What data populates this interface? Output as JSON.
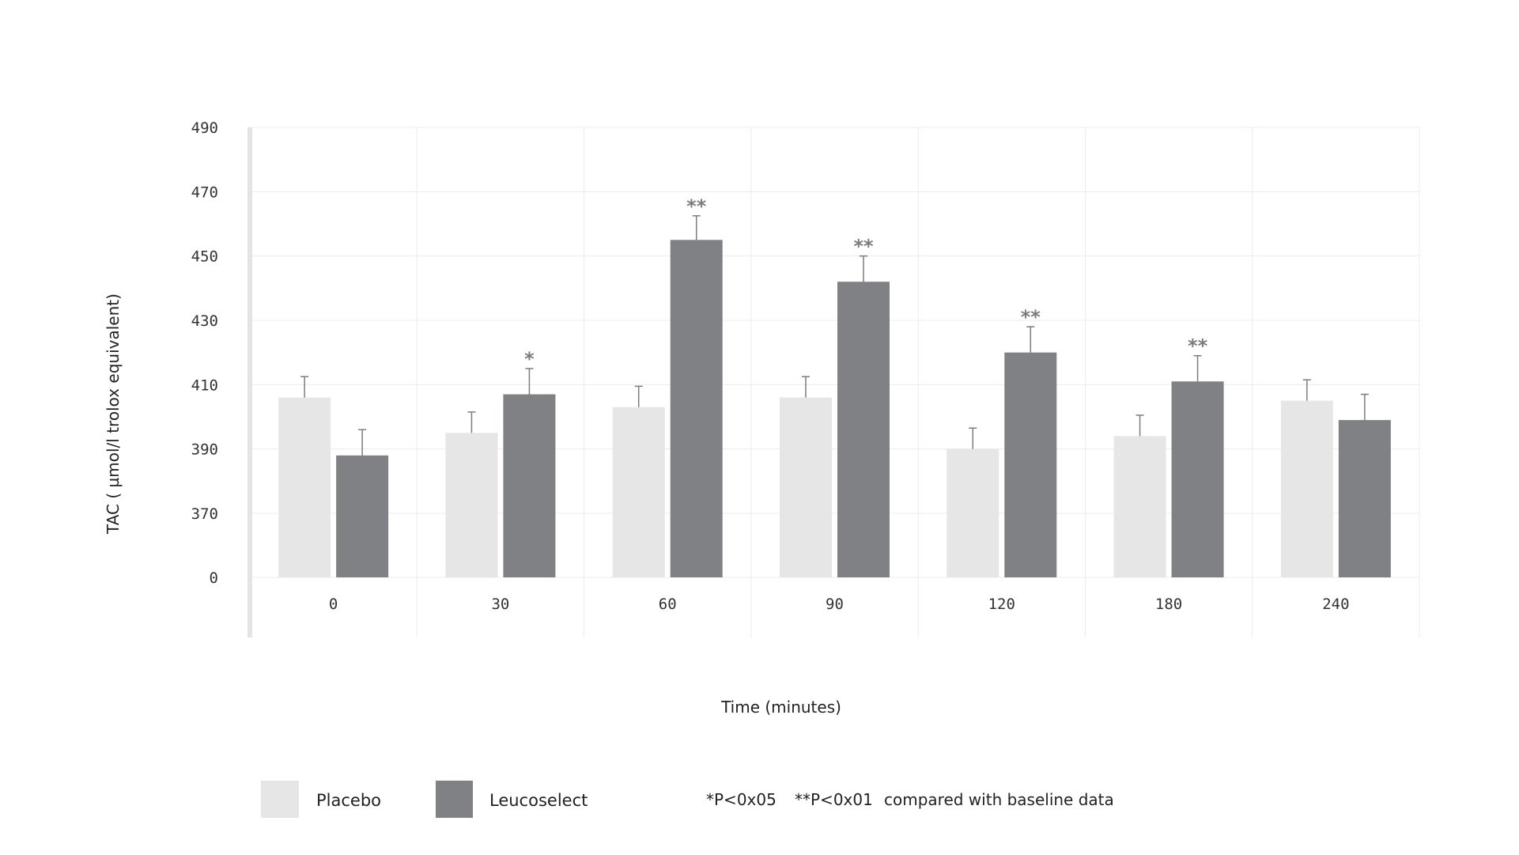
{
  "chart_data": {
    "type": "bar",
    "title": "",
    "xlabel": "Time (minutes)",
    "ylabel": "TAC ( µmol/l trolox equivalent)",
    "categories": [
      "0",
      "30",
      "60",
      "90",
      "120",
      "180",
      "240"
    ],
    "y_ticks": [
      "0",
      "370",
      "390",
      "410",
      "430",
      "450",
      "470",
      "490"
    ],
    "ylim": [
      370,
      490
    ],
    "axis_break": true,
    "grid": true,
    "legend_position": "bottom-left",
    "series": [
      {
        "name": "Placebo",
        "color": "#e6e6e7",
        "values": [
          406,
          395,
          403,
          406,
          390,
          394,
          405
        ],
        "error": [
          6.5,
          6.5,
          6.5,
          6.5,
          6.5,
          6.5,
          6.5
        ],
        "significance": [
          "",
          "",
          "",
          "",
          "",
          "",
          ""
        ]
      },
      {
        "name": "Leucoselect",
        "color": "#808184",
        "values": [
          388,
          407,
          455,
          442,
          420,
          411,
          399
        ],
        "error": [
          8,
          8,
          7.5,
          8,
          8,
          8,
          8
        ],
        "significance": [
          "",
          "*",
          "**",
          "**",
          "**",
          "**",
          ""
        ]
      }
    ]
  },
  "legend": {
    "items": [
      {
        "label": "Placebo",
        "color": "#e6e6e7"
      },
      {
        "label": "Leucoselect",
        "color": "#808184"
      }
    ]
  },
  "footnote": {
    "p05": "*P<0x05",
    "p01": "**P<0x01",
    "text": "compared with baseline data"
  }
}
